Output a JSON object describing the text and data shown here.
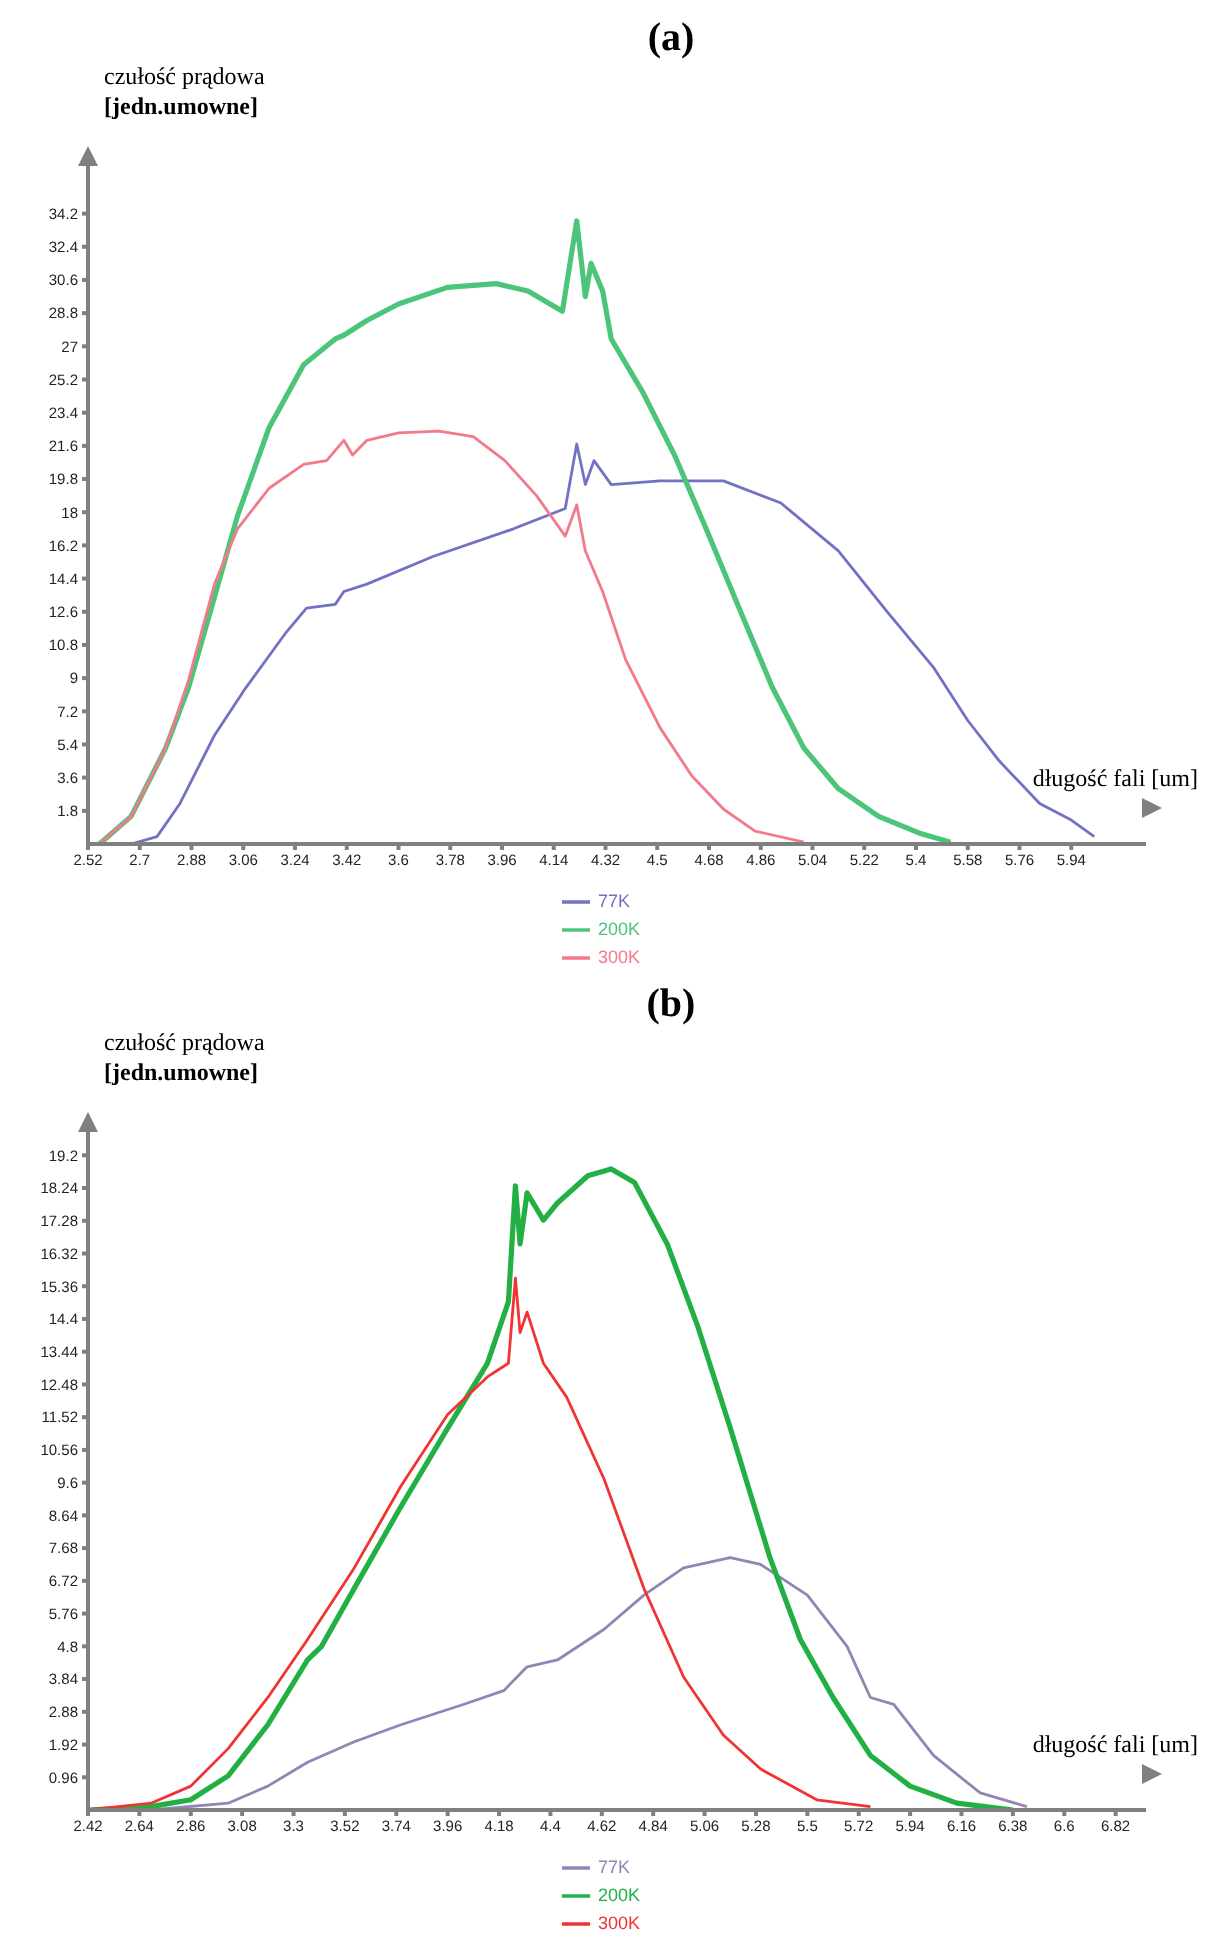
{
  "chart_data": [
    {
      "type": "line",
      "title": "(a)",
      "ylabel": "czułość prądowa\n[jedn.umowne]",
      "xlabel": "długość fali [um]",
      "xlim": [
        2.52,
        6.2
      ],
      "xticks": [
        2.52,
        2.7,
        2.88,
        3.06,
        3.24,
        3.42,
        3.6,
        3.78,
        3.96,
        4.14,
        4.32,
        4.5,
        4.68,
        4.86,
        5.04,
        5.22,
        5.4,
        5.58,
        5.76,
        5.94
      ],
      "ylim": [
        0,
        37
      ],
      "yticks": [
        1.8,
        3.6,
        5.4,
        7.2,
        9,
        10.8,
        12.6,
        14.4,
        16.2,
        18,
        19.8,
        21.6,
        23.4,
        25.2,
        27,
        28.8,
        30.6,
        32.4,
        34.2
      ],
      "grid": false,
      "legend": "bottom",
      "marker": "none",
      "line_style": "solid",
      "series": [
        {
          "name": "77K",
          "color": "#7272c4",
          "x": [
            2.67,
            2.76,
            2.84,
            2.96,
            3.07,
            3.21,
            3.28,
            3.38,
            3.41,
            3.49,
            3.72,
            4.0,
            4.18,
            4.22,
            4.25,
            4.28,
            4.34,
            4.51,
            4.73,
            4.93,
            5.13,
            5.3,
            5.46,
            5.58,
            5.69,
            5.83,
            5.94,
            6.02
          ],
          "values": [
            0,
            0.4,
            2.2,
            5.9,
            8.5,
            11.5,
            12.8,
            13,
            13.7,
            14.1,
            15.6,
            17.1,
            18.2,
            21.7,
            19.5,
            20.8,
            19.5,
            19.7,
            19.7,
            18.5,
            15.9,
            12.6,
            9.6,
            6.7,
            4.5,
            2.2,
            1.3,
            0.4
          ]
        },
        {
          "name": "200K",
          "color": "#4cc47a",
          "x": [
            2.56,
            2.67,
            2.79,
            2.87,
            2.96,
            3.04,
            3.15,
            3.27,
            3.38,
            3.41,
            3.49,
            3.6,
            3.77,
            3.94,
            4.05,
            4.17,
            4.22,
            4.25,
            4.27,
            4.31,
            4.34,
            4.45,
            4.56,
            4.67,
            4.79,
            4.9,
            5.01,
            5.13,
            5.27,
            5.41,
            5.52
          ],
          "values": [
            0,
            1.5,
            5.2,
            8.5,
            13.4,
            17.8,
            22.6,
            26,
            27.4,
            27.6,
            28.4,
            29.3,
            30.2,
            30.4,
            30,
            28.9,
            33.8,
            29.7,
            31.5,
            30,
            27.4,
            24.5,
            21.1,
            17.1,
            12.6,
            8.5,
            5.2,
            3.0,
            1.5,
            0.6,
            0.1
          ]
        },
        {
          "name": "300K",
          "color": "#f27a8a",
          "x": [
            2.56,
            2.67,
            2.79,
            2.87,
            2.96,
            3.04,
            3.15,
            3.27,
            3.35,
            3.41,
            3.44,
            3.49,
            3.6,
            3.74,
            3.86,
            3.97,
            4.08,
            4.18,
            4.22,
            4.25,
            4.31,
            4.39,
            4.51,
            4.62,
            4.73,
            4.84,
            5.01
          ],
          "values": [
            0,
            1.5,
            5.2,
            8.9,
            14.1,
            17.1,
            19.3,
            20.6,
            20.8,
            21.9,
            21.1,
            21.9,
            22.3,
            22.4,
            22.1,
            20.8,
            18.9,
            16.7,
            18.4,
            15.9,
            13.7,
            10.0,
            6.3,
            3.7,
            1.9,
            0.7,
            0.1
          ]
        }
      ]
    },
    {
      "type": "line",
      "title": "(b)",
      "ylabel": "czułość prądowa\n[jedn.umowne]",
      "xlabel": "długość fali [um]",
      "xlim": [
        2.42,
        6.95
      ],
      "xticks": [
        2.42,
        2.64,
        2.86,
        3.08,
        3.3,
        3.52,
        3.74,
        3.96,
        4.18,
        4.4,
        4.62,
        4.84,
        5.06,
        5.28,
        5.5,
        5.72,
        5.94,
        6.16,
        6.38,
        6.6,
        6.82
      ],
      "ylim": [
        0,
        20
      ],
      "yticks": [
        0.96,
        1.92,
        2.88,
        3.84,
        4.8,
        5.76,
        6.72,
        7.68,
        8.64,
        9.6,
        10.56,
        11.52,
        12.48,
        13.44,
        14.4,
        15.36,
        16.32,
        17.28,
        18.24,
        19.2
      ],
      "grid": false,
      "legend": "bottom",
      "marker": "none",
      "line_style": "solid",
      "series": [
        {
          "name": "77K",
          "color": "#9484b4",
          "x": [
            2.69,
            3.02,
            3.19,
            3.36,
            3.56,
            3.76,
            4.03,
            4.2,
            4.3,
            4.43,
            4.63,
            4.8,
            4.97,
            5.17,
            5.3,
            5.5,
            5.67,
            5.77,
            5.87,
            6.04,
            6.24,
            6.44
          ],
          "values": [
            0,
            0.2,
            0.7,
            1.4,
            2.0,
            2.5,
            3.1,
            3.5,
            4.2,
            4.4,
            5.3,
            6.3,
            7.1,
            7.4,
            7.2,
            6.3,
            4.8,
            3.3,
            3.1,
            1.6,
            0.5,
            0.1
          ]
        },
        {
          "name": "200K",
          "color": "#22b044",
          "x": [
            2.42,
            2.69,
            2.86,
            3.02,
            3.19,
            3.36,
            3.42,
            3.56,
            3.76,
            3.96,
            4.13,
            4.22,
            4.25,
            4.27,
            4.3,
            4.37,
            4.43,
            4.56,
            4.66,
            4.76,
            4.9,
            5.03,
            5.17,
            5.34,
            5.47,
            5.61,
            5.77,
            5.94,
            6.14,
            6.38
          ],
          "values": [
            0,
            0.1,
            0.3,
            1.0,
            2.5,
            4.4,
            4.8,
            6.5,
            8.9,
            11.2,
            13.1,
            14.9,
            18.3,
            16.6,
            18.1,
            17.3,
            17.8,
            18.6,
            18.8,
            18.4,
            16.6,
            14.2,
            11.2,
            7.4,
            5.0,
            3.3,
            1.6,
            0.7,
            0.2,
            0
          ]
        },
        {
          "name": "300K",
          "color": "#f03434",
          "x": [
            2.42,
            2.69,
            2.86,
            3.02,
            3.19,
            3.36,
            3.56,
            3.76,
            3.96,
            4.13,
            4.22,
            4.25,
            4.27,
            4.3,
            4.37,
            4.47,
            4.63,
            4.8,
            4.97,
            5.14,
            5.3,
            5.54,
            5.77
          ],
          "values": [
            0,
            0.2,
            0.7,
            1.8,
            3.3,
            5.0,
            7.1,
            9.5,
            11.6,
            12.7,
            13.1,
            15.6,
            14.0,
            14.6,
            13.1,
            12.1,
            9.7,
            6.5,
            3.9,
            2.2,
            1.2,
            0.3,
            0.1
          ]
        }
      ]
    }
  ]
}
